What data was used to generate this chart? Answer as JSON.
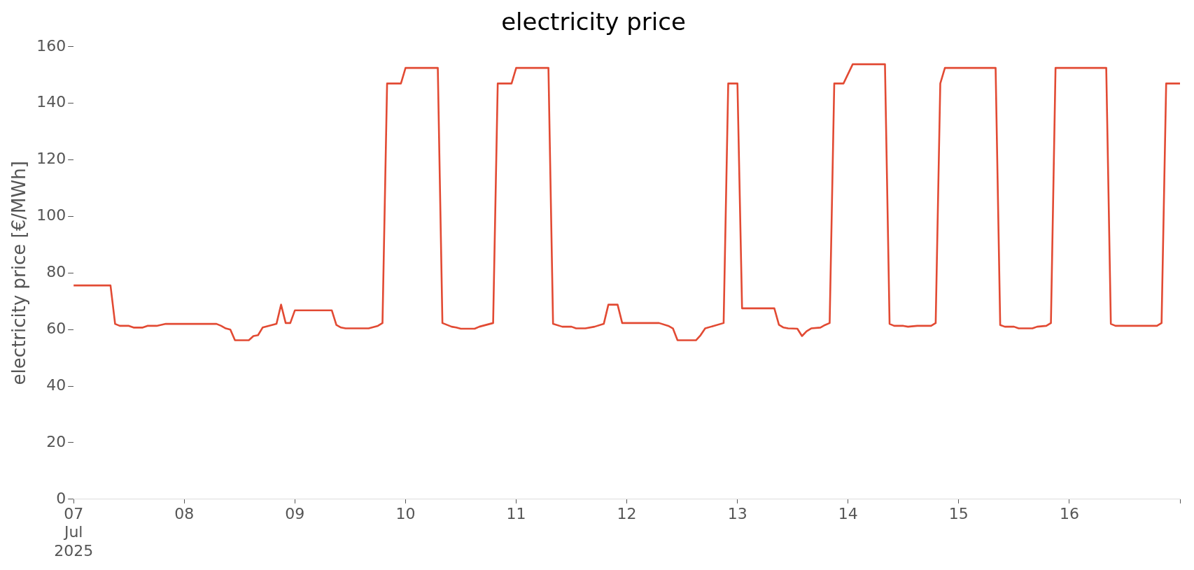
{
  "chart_data": {
    "type": "line",
    "title": "electricity price",
    "ylabel": "electricity price [€/MWh]",
    "x": [
      "2025-07-07T00:00",
      "2025-07-07T08:00",
      "2025-07-07T09:00",
      "2025-07-07T10:00",
      "2025-07-07T12:00",
      "2025-07-07T13:00",
      "2025-07-07T15:00",
      "2025-07-07T16:00",
      "2025-07-07T18:00",
      "2025-07-07T20:00",
      "2025-07-08T07:00",
      "2025-07-08T08:00",
      "2025-07-08T09:00",
      "2025-07-08T10:00",
      "2025-07-08T11:00",
      "2025-07-08T14:00",
      "2025-07-08T15:00",
      "2025-07-08T16:00",
      "2025-07-08T17:00",
      "2025-07-08T20:00",
      "2025-07-08T21:00",
      "2025-07-08T22:00",
      "2025-07-08T23:00",
      "2025-07-09T00:00",
      "2025-07-09T08:00",
      "2025-07-09T09:00",
      "2025-07-09T10:00",
      "2025-07-09T11:00",
      "2025-07-09T16:00",
      "2025-07-09T18:00",
      "2025-07-09T19:00",
      "2025-07-09T20:00",
      "2025-07-09T23:00",
      "2025-07-10T00:00",
      "2025-07-10T07:00",
      "2025-07-10T08:00",
      "2025-07-10T10:00",
      "2025-07-10T11:00",
      "2025-07-10T12:00",
      "2025-07-10T15:00",
      "2025-07-10T16:00",
      "2025-07-10T19:00",
      "2025-07-10T20:00",
      "2025-07-10T23:00",
      "2025-07-11T00:00",
      "2025-07-11T07:00",
      "2025-07-11T08:00",
      "2025-07-11T10:00",
      "2025-07-11T12:00",
      "2025-07-11T13:00",
      "2025-07-11T15:00",
      "2025-07-11T17:00",
      "2025-07-11T19:00",
      "2025-07-11T20:00",
      "2025-07-11T22:00",
      "2025-07-11T23:00",
      "2025-07-12T07:00",
      "2025-07-12T09:00",
      "2025-07-12T10:00",
      "2025-07-12T11:00",
      "2025-07-12T15:00",
      "2025-07-12T16:00",
      "2025-07-12T17:00",
      "2025-07-12T21:00",
      "2025-07-12T22:00",
      "2025-07-13T00:00",
      "2025-07-13T01:00",
      "2025-07-13T08:00",
      "2025-07-13T09:00",
      "2025-07-13T10:00",
      "2025-07-13T11:00",
      "2025-07-13T13:00",
      "2025-07-13T14:00",
      "2025-07-13T15:00",
      "2025-07-13T16:00",
      "2025-07-13T18:00",
      "2025-07-13T19:00",
      "2025-07-13T20:00",
      "2025-07-13T21:00",
      "2025-07-13T23:00",
      "2025-07-14T01:00",
      "2025-07-14T08:00",
      "2025-07-14T09:00",
      "2025-07-14T10:00",
      "2025-07-14T12:00",
      "2025-07-14T13:00",
      "2025-07-14T15:00",
      "2025-07-14T18:00",
      "2025-07-14T19:00",
      "2025-07-14T20:00",
      "2025-07-14T21:00",
      "2025-07-15T08:00",
      "2025-07-15T09:00",
      "2025-07-15T10:00",
      "2025-07-15T12:00",
      "2025-07-15T13:00",
      "2025-07-15T16:00",
      "2025-07-15T17:00",
      "2025-07-15T19:00",
      "2025-07-15T20:00",
      "2025-07-15T21:00",
      "2025-07-16T08:00",
      "2025-07-16T09:00",
      "2025-07-16T10:00",
      "2025-07-16T19:00",
      "2025-07-16T20:00",
      "2025-07-16T21:00",
      "2025-07-17T00:00"
    ],
    "series": [
      {
        "color": "#e24a33",
        "values": [
          75.6,
          75.6,
          62,
          61.3,
          61.3,
          60.7,
          60.7,
          61.3,
          61.3,
          62,
          62,
          61.3,
          60.4,
          60,
          56.2,
          56.2,
          57.7,
          58,
          60.7,
          62,
          68.8,
          62.3,
          62.3,
          66.8,
          66.8,
          61.6,
          60.7,
          60.4,
          60.4,
          61.3,
          62.3,
          147,
          147,
          152.5,
          152.5,
          62.3,
          61,
          60.7,
          60.3,
          60.3,
          61,
          62.3,
          147,
          147,
          152.5,
          152.5,
          62,
          61,
          61,
          60.4,
          60.4,
          61,
          62,
          68.8,
          68.8,
          62.3,
          62.3,
          61.3,
          60.4,
          56.2,
          56.2,
          58,
          60.4,
          62.3,
          147,
          147,
          67.5,
          67.5,
          61.7,
          60.7,
          60.4,
          60.3,
          57.7,
          59.4,
          60.4,
          60.7,
          61.6,
          62.3,
          147,
          147,
          153.8,
          153.8,
          62,
          61.3,
          61.3,
          61,
          61.3,
          61.3,
          62.3,
          147,
          152.5,
          152.5,
          61.6,
          61,
          61,
          60.4,
          60.4,
          61,
          61.3,
          62.3,
          152.5,
          152.5,
          62,
          61.3,
          61.3,
          62.3,
          147,
          147
        ]
      }
    ],
    "xticks": [
      {
        "value": "2025-07-07",
        "label": "07\nJul\n2025"
      },
      {
        "value": "2025-07-08",
        "label": "08"
      },
      {
        "value": "2025-07-09",
        "label": "09"
      },
      {
        "value": "2025-07-10",
        "label": "10"
      },
      {
        "value": "2025-07-11",
        "label": "11"
      },
      {
        "value": "2025-07-12",
        "label": "12"
      },
      {
        "value": "2025-07-13",
        "label": "13"
      },
      {
        "value": "2025-07-14",
        "label": "14"
      },
      {
        "value": "2025-07-15",
        "label": "15"
      },
      {
        "value": "2025-07-16",
        "label": "16"
      },
      {
        "value": "2025-07-17",
        "label": null
      }
    ],
    "xlim": [
      "2025-07-07T00:00",
      "2025-07-17T00:00"
    ],
    "ylim": [
      0,
      160
    ],
    "yticks": [
      0,
      20,
      40,
      60,
      80,
      100,
      120,
      140,
      160
    ],
    "grid": false,
    "legend": false,
    "marker": "none",
    "line_style": "solid"
  }
}
